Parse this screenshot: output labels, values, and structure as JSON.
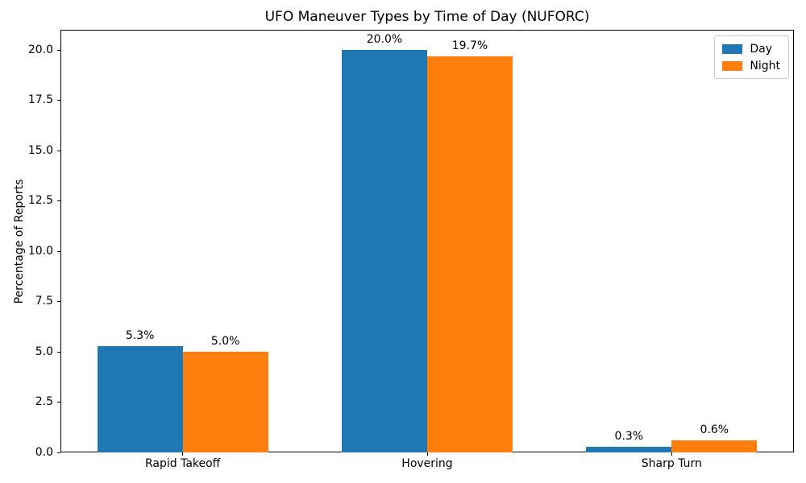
{
  "chart_data": {
    "type": "bar",
    "title": "UFO Maneuver Types by Time of Day (NUFORC)",
    "xlabel": "",
    "ylabel": "Percentage of Reports",
    "categories": [
      "Rapid Takeoff",
      "Hovering",
      "Sharp Turn"
    ],
    "series": [
      {
        "name": "Day",
        "color": "#1f77b4",
        "values": [
          5.3,
          20.0,
          0.3
        ],
        "value_labels": [
          "5.3%",
          "20.0%",
          "0.3%"
        ]
      },
      {
        "name": "Night",
        "color": "#ff7f0e",
        "values": [
          5.0,
          19.7,
          0.6
        ],
        "value_labels": [
          "5.0%",
          "19.7%",
          "0.6%"
        ]
      }
    ],
    "ylim": [
      0,
      21
    ],
    "yticks": [
      0.0,
      2.5,
      5.0,
      7.5,
      10.0,
      12.5,
      15.0,
      17.5,
      20.0
    ],
    "ytick_labels": [
      "0.0",
      "2.5",
      "5.0",
      "7.5",
      "10.0",
      "12.5",
      "15.0",
      "17.5",
      "20.0"
    ],
    "bar_width_fraction": 0.35,
    "legend_position": "upper right",
    "grid": false
  }
}
